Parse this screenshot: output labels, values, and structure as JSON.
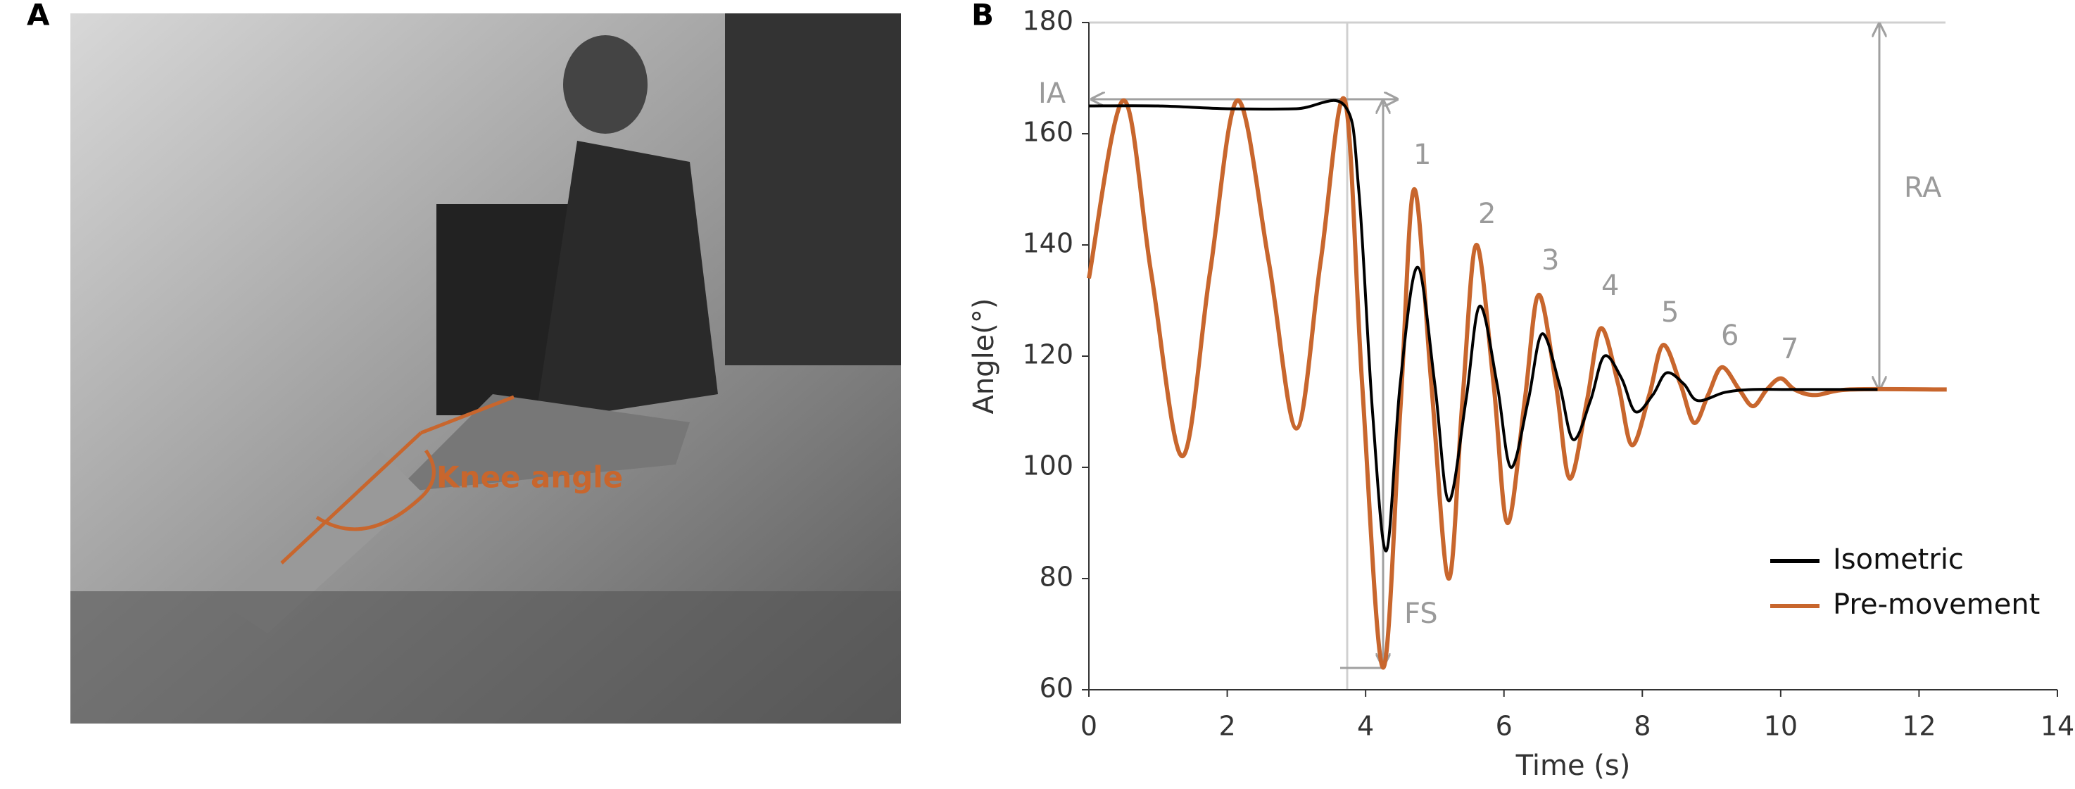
{
  "figure": {
    "panel_a": "A",
    "panel_b": "B",
    "knee_label": "Knee angle"
  },
  "chart_data": {
    "type": "line",
    "xlabel": "Time (s)",
    "ylabel": "Angle(°)",
    "xlim": [
      0,
      14
    ],
    "ylim": [
      60,
      180
    ],
    "xticks": [
      0,
      2,
      4,
      6,
      8,
      10,
      12,
      14
    ],
    "yticks": [
      60,
      80,
      100,
      120,
      140,
      160,
      180
    ],
    "legend": "lower right",
    "annotations": [
      "IA",
      "RA",
      "FS",
      "1",
      "2",
      "3",
      "4",
      "5",
      "6",
      "7"
    ],
    "series": [
      {
        "name": "Isometric",
        "color": "#000000",
        "x": [
          0,
          1,
          2,
          3,
          3.7,
          3.9,
          4.1,
          4.3,
          4.5,
          4.75,
          5.0,
          5.2,
          5.45,
          5.65,
          5.9,
          6.1,
          6.35,
          6.55,
          6.8,
          7.0,
          7.25,
          7.45,
          7.7,
          7.9,
          8.15,
          8.35,
          8.6,
          8.8,
          9.2,
          9.6,
          10.2,
          11.4
        ],
        "values": [
          165,
          165,
          164.5,
          164.5,
          165,
          150,
          110,
          85,
          115,
          136,
          115,
          94,
          112,
          129,
          115,
          100,
          112,
          124,
          115,
          105,
          112,
          120,
          116,
          110,
          113,
          117,
          115,
          112,
          113.5,
          114,
          114,
          114
        ]
      },
      {
        "name": "Pre-movement",
        "color": "#c8662d",
        "x": [
          0,
          0.5,
          0.9,
          1.35,
          1.75,
          2.15,
          2.6,
          3.0,
          3.35,
          3.7,
          3.95,
          4.25,
          4.5,
          4.7,
          4.95,
          5.2,
          5.4,
          5.6,
          5.85,
          6.05,
          6.3,
          6.5,
          6.75,
          6.95,
          7.2,
          7.4,
          7.65,
          7.85,
          8.1,
          8.3,
          8.55,
          8.75,
          8.95,
          9.15,
          9.4,
          9.6,
          9.8,
          10.0,
          10.2,
          10.5,
          11,
          12.4
        ],
        "values": [
          134,
          166,
          135,
          102,
          135,
          166,
          137,
          107,
          137,
          166,
          115,
          64,
          110,
          150,
          115,
          80,
          112,
          140,
          115,
          90,
          112,
          131,
          115,
          98,
          112,
          125,
          115,
          104,
          113,
          122,
          115,
          108,
          113,
          118,
          114,
          111,
          114,
          116,
          114,
          113,
          114,
          114
        ]
      }
    ]
  }
}
